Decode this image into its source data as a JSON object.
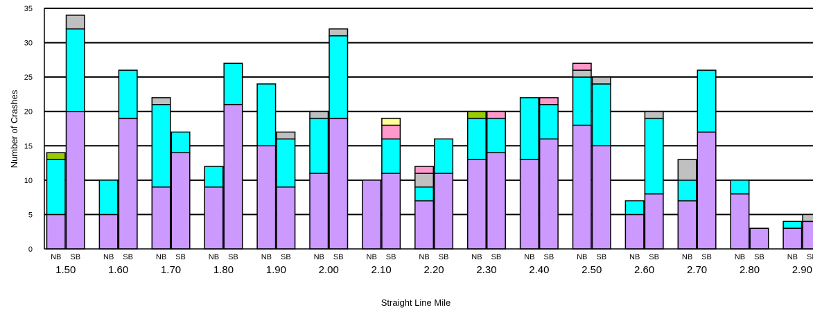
{
  "chart_data": {
    "type": "bar",
    "stacked": true,
    "xlabel": "Straight Line Mile",
    "ylabel": "Number of Crashes",
    "ylim": [
      0,
      35
    ],
    "yticks": [
      0,
      5,
      10,
      15,
      20,
      25,
      30,
      35
    ],
    "grid": true,
    "groups": [
      "1.50",
      "1.60",
      "1.70",
      "1.80",
      "1.90",
      "2.00",
      "2.10",
      "2.20",
      "2.30",
      "2.40",
      "2.50",
      "2.60",
      "2.70",
      "2.80",
      "2.90"
    ],
    "subcategories": [
      "NB",
      "SB"
    ],
    "series_colors": [
      "#cc99ff",
      "#00ffff",
      "#c0c0c0",
      "#ff99cc",
      "#ffff99",
      "#99cc00"
    ],
    "bars": [
      {
        "group": "1.50",
        "dir": "NB",
        "segments": [
          5,
          8,
          0,
          0,
          0,
          1
        ]
      },
      {
        "group": "1.50",
        "dir": "SB",
        "segments": [
          20,
          12,
          2,
          0,
          0,
          0
        ]
      },
      {
        "group": "1.60",
        "dir": "NB",
        "segments": [
          5,
          5,
          0,
          0,
          0,
          0
        ]
      },
      {
        "group": "1.60",
        "dir": "SB",
        "segments": [
          19,
          7,
          0,
          0,
          0,
          0
        ]
      },
      {
        "group": "1.70",
        "dir": "NB",
        "segments": [
          9,
          12,
          1,
          0,
          0,
          0
        ]
      },
      {
        "group": "1.70",
        "dir": "SB",
        "segments": [
          14,
          3,
          0,
          0,
          0,
          0
        ]
      },
      {
        "group": "1.80",
        "dir": "NB",
        "segments": [
          9,
          3,
          0,
          0,
          0,
          0
        ]
      },
      {
        "group": "1.80",
        "dir": "SB",
        "segments": [
          21,
          6,
          0,
          0,
          0,
          0
        ]
      },
      {
        "group": "1.90",
        "dir": "NB",
        "segments": [
          15,
          9,
          0,
          0,
          0,
          0
        ]
      },
      {
        "group": "1.90",
        "dir": "SB",
        "segments": [
          9,
          7,
          1,
          0,
          0,
          0
        ]
      },
      {
        "group": "2.00",
        "dir": "NB",
        "segments": [
          11,
          8,
          1,
          0,
          0,
          0
        ]
      },
      {
        "group": "2.00",
        "dir": "SB",
        "segments": [
          19,
          12,
          1,
          0,
          0,
          0
        ]
      },
      {
        "group": "2.10",
        "dir": "NB",
        "segments": [
          10,
          0,
          0,
          0,
          0,
          0
        ]
      },
      {
        "group": "2.10",
        "dir": "SB",
        "segments": [
          11,
          5,
          0,
          2,
          1,
          0
        ]
      },
      {
        "group": "2.20",
        "dir": "NB",
        "segments": [
          7,
          2,
          2,
          1,
          0,
          0
        ]
      },
      {
        "group": "2.20",
        "dir": "SB",
        "segments": [
          11,
          5,
          0,
          0,
          0,
          0
        ]
      },
      {
        "group": "2.30",
        "dir": "NB",
        "segments": [
          13,
          6,
          0,
          0,
          0,
          1
        ]
      },
      {
        "group": "2.30",
        "dir": "SB",
        "segments": [
          14,
          5,
          0,
          1,
          0,
          0
        ]
      },
      {
        "group": "2.40",
        "dir": "NB",
        "segments": [
          13,
          9,
          0,
          0,
          0,
          0
        ]
      },
      {
        "group": "2.40",
        "dir": "SB",
        "segments": [
          16,
          5,
          0,
          1,
          0,
          0
        ]
      },
      {
        "group": "2.50",
        "dir": "NB",
        "segments": [
          18,
          7,
          1,
          1,
          0,
          0
        ]
      },
      {
        "group": "2.50",
        "dir": "SB",
        "segments": [
          15,
          9,
          1,
          0,
          0,
          0
        ]
      },
      {
        "group": "2.60",
        "dir": "NB",
        "segments": [
          5,
          2,
          0,
          0,
          0,
          0
        ]
      },
      {
        "group": "2.60",
        "dir": "SB",
        "segments": [
          8,
          11,
          1,
          0,
          0,
          0
        ]
      },
      {
        "group": "2.70",
        "dir": "NB",
        "segments": [
          7,
          3,
          3,
          0,
          0,
          0
        ]
      },
      {
        "group": "2.70",
        "dir": "SB",
        "segments": [
          17,
          9,
          0,
          0,
          0,
          0
        ]
      },
      {
        "group": "2.80",
        "dir": "NB",
        "segments": [
          8,
          2,
          0,
          0,
          0,
          0
        ]
      },
      {
        "group": "2.80",
        "dir": "SB",
        "segments": [
          3,
          0,
          0,
          0,
          0,
          0
        ]
      },
      {
        "group": "2.90",
        "dir": "NB",
        "segments": [
          3,
          1,
          0,
          0,
          0,
          0
        ]
      },
      {
        "group": "2.90",
        "dir": "SB",
        "segments": [
          4,
          0,
          1,
          0,
          0,
          0
        ]
      }
    ]
  }
}
